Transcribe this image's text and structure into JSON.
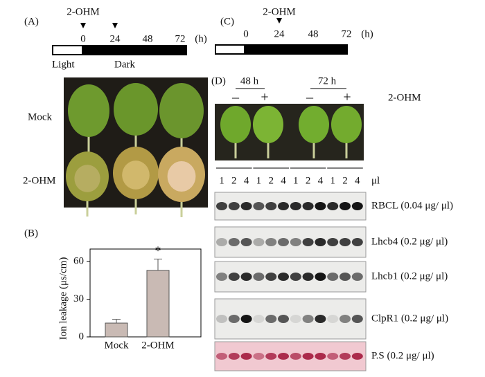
{
  "panel_a": {
    "label": "(A)",
    "treatment": "2-OHM",
    "times": [
      "0",
      "24",
      "48",
      "72"
    ],
    "unit": "(h)",
    "light": "Light",
    "dark": "Dark",
    "rows": [
      "Mock",
      "2-OHM"
    ]
  },
  "panel_b": {
    "label": "(B)"
  },
  "chart_data": {
    "type": "bar",
    "ylabel": "Ion leakage (μs/cm)",
    "categories": [
      "Mock",
      "2-OHM"
    ],
    "values": [
      11,
      53
    ],
    "errors": [
      3,
      9
    ],
    "significance": [
      null,
      "*"
    ],
    "color": "#c9bab4",
    "ylim": [
      0,
      70
    ],
    "yticks": [
      0,
      30,
      60
    ]
  },
  "panel_c": {
    "label": "(C)",
    "treatment": "2-OHM",
    "times": [
      "0",
      "24",
      "48",
      "72"
    ],
    "unit": "(h)"
  },
  "panel_d": {
    "label": "(D)",
    "timepoints": [
      "48 h",
      "72 h"
    ],
    "signs": [
      "–",
      "+",
      "–",
      "+"
    ],
    "treatment": "2-OHM",
    "lanes": [
      "1",
      "2",
      "4"
    ],
    "lane_unit": "μl",
    "blots": [
      "RBCL (0.04 μg/ μl)",
      "Lhcb4 (0.2 μg/ μl)",
      "Lhcb1 (0.2 μg/ μl)",
      "ClpR1 (0.2 μg/ μl)",
      "P.S (0.2 μg/ μl)"
    ]
  }
}
